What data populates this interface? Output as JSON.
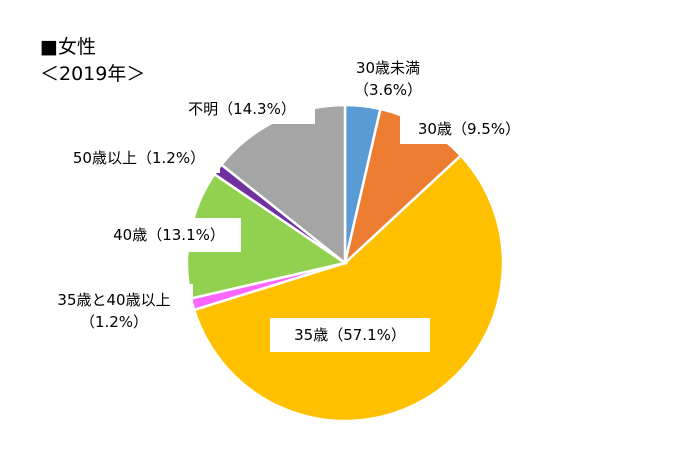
{
  "title": {
    "line1": "■女性",
    "line2": "＜2019年＞"
  },
  "chart_data": {
    "type": "pie",
    "title": "■女性 ＜2019年＞",
    "start_angle_deg": 0,
    "direction": "clockwise",
    "slices": [
      {
        "label": "30歳未満",
        "value": 3.6,
        "color": "#5B9BD5",
        "label_lines": [
          "30歳未満",
          "（3.6%）"
        ]
      },
      {
        "label": "30歳",
        "value": 9.5,
        "color": "#ED7D31",
        "label_lines": [
          "30歳（9.5%）"
        ]
      },
      {
        "label": "35歳",
        "value": 57.1,
        "color": "#FFC000",
        "label_lines": [
          "35歳（57.1%）"
        ]
      },
      {
        "label": "35歳と40歳以上",
        "value": 1.2,
        "color": "#FF66FF",
        "label_lines": [
          "35歳と40歳以上",
          "（1.2%）"
        ]
      },
      {
        "label": "40歳",
        "value": 13.1,
        "color": "#92D050",
        "label_lines": [
          "40歳（13.1%）"
        ]
      },
      {
        "label": "50歳以上",
        "value": 1.2,
        "color": "#7030A0",
        "label_lines": [
          "50歳以上（1.2%）"
        ]
      },
      {
        "label": "不明",
        "value": 14.3,
        "color": "#A5A5A5",
        "label_lines": [
          "不明（14.3%）"
        ]
      }
    ]
  }
}
